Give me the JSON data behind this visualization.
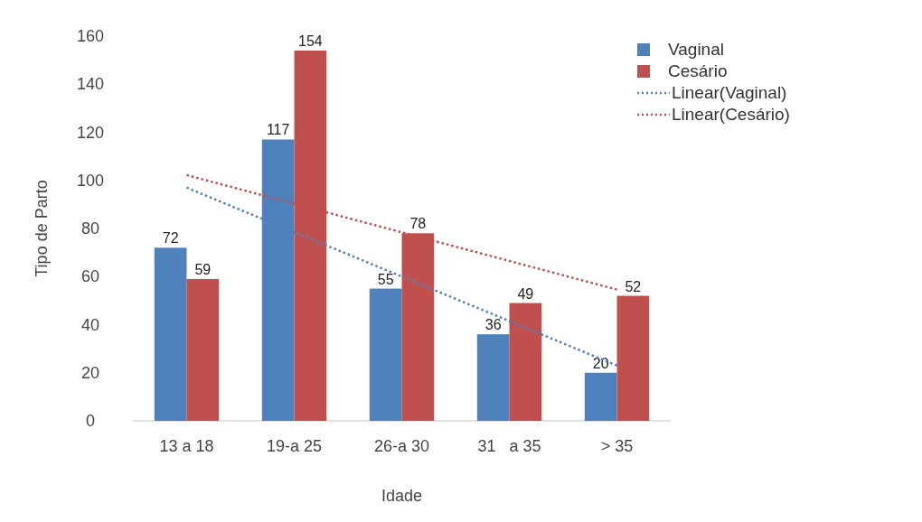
{
  "chart_data": {
    "type": "bar",
    "xlabel": "Idade",
    "ylabel": "Tipo de Parto",
    "categories": [
      "13 a 18",
      "19-a 25",
      "26-a 30",
      "31   a 35",
      "> 35"
    ],
    "series": [
      {
        "name": "Vaginal",
        "color": "#4f81bd",
        "values": [
          72,
          117,
          55,
          36,
          20
        ],
        "value_labels": [
          "72",
          "117",
          "55",
          "36",
          "20"
        ]
      },
      {
        "name": "Cesário",
        "color": "#c0504d",
        "values": [
          59,
          154,
          78,
          49,
          52
        ],
        "value_labels": [
          "59",
          "154",
          "78",
          "49",
          "52"
        ]
      },
      {
        "name": "Linear(Vaginal)",
        "type": "line",
        "color": "#4f81bd",
        "line_style": "dotted",
        "values": [
          97,
          78.5,
          60,
          41.5,
          23
        ]
      },
      {
        "name": "Linear(Cesário)",
        "type": "line",
        "color": "#c0504d",
        "line_style": "dotted",
        "values": [
          102.2,
          90.3,
          78.4,
          66.5,
          54.6
        ]
      }
    ],
    "ylim": [
      0,
      160
    ],
    "yticks": [
      0,
      20,
      40,
      60,
      80,
      100,
      120,
      140,
      160
    ],
    "grid": false,
    "legend": "right"
  }
}
